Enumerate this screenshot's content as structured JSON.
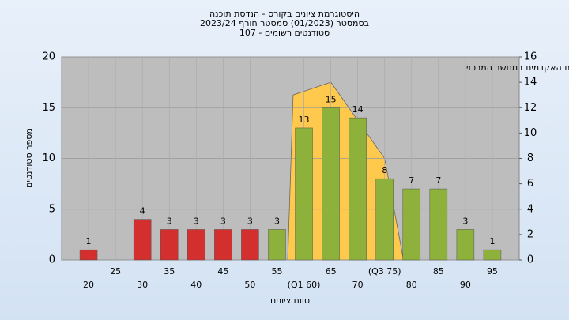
{
  "chart_data": {
    "type": "bar",
    "title": "היסטוגרמת ציונים בקורס - הנדסת תוכנה",
    "subtitle": "בסמסטר  (01/2023)  סמסטר חורף 2023/24",
    "subtitle2": "סטודנטים רשומים - 107",
    "annotation": "במשימה : ציון סופי במערכת האקדמית במחשב המרכזי",
    "ylabel": "מספר סטודנטים",
    "xlabel": "טווח ציונים",
    "x": [
      20,
      25,
      30,
      35,
      40,
      45,
      50,
      55,
      60,
      65,
      70,
      75,
      80,
      85,
      90,
      95
    ],
    "values": [
      1,
      null,
      4,
      3,
      3,
      3,
      3,
      3,
      13,
      15,
      14,
      8,
      7,
      7,
      3,
      1
    ],
    "colors": [
      "#d32f2f",
      null,
      "#d32f2f",
      "#d32f2f",
      "#d32f2f",
      "#d32f2f",
      "#d32f2f",
      "#8db13a",
      "#8db13a",
      "#8db13a",
      "#8db13a",
      "#8db13a",
      "#8db13a",
      "#8db13a",
      "#8db13a",
      "#8db13a"
    ],
    "xlim": [
      15,
      100
    ],
    "xticks": [
      20,
      25,
      30,
      35,
      40,
      45,
      50,
      55,
      {
        "value": 60,
        "label": "(Q1 60)"
      },
      65,
      70,
      {
        "value": 75,
        "label": "(Q3 75)"
      },
      80,
      85,
      90,
      95
    ],
    "ylim": [
      0,
      20
    ],
    "yticks": [
      0,
      5,
      10,
      15,
      20
    ],
    "y2lim": [
      0,
      16
    ],
    "y2ticks": [
      0,
      2,
      4,
      6,
      8,
      10,
      12,
      14,
      16
    ],
    "area": {
      "axis": "y2",
      "color": "#ffc94d",
      "x": [
        57,
        58,
        65,
        75,
        78.5
      ],
      "values": [
        0,
        13,
        14,
        8,
        0
      ]
    },
    "grid": true
  }
}
